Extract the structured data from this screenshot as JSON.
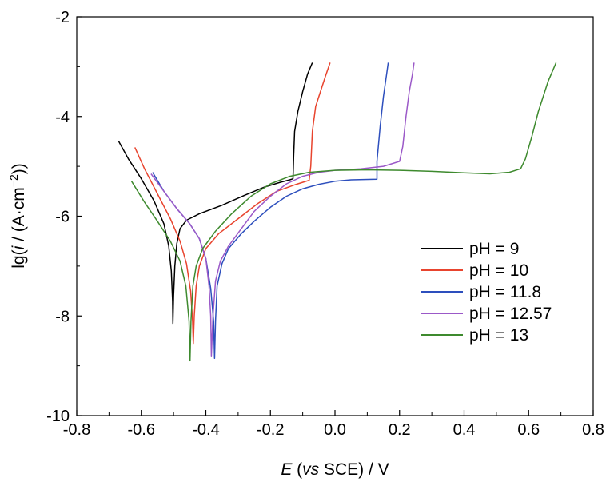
{
  "chart_data": {
    "type": "line",
    "title": "",
    "xlabel": {
      "italic": "E",
      "pre": " (",
      "italic2": "vs",
      "post": " SCE) / V"
    },
    "ylabel": {
      "pre": "lg(",
      "italic": "i",
      "mid": " / (A·cm",
      "sup": "−2",
      "post": "))"
    },
    "xlim": [
      -0.8,
      0.8
    ],
    "ylim": [
      -10,
      -2
    ],
    "xticks": [
      "-0.8",
      "-0.6",
      "-0.4",
      "-0.2",
      "0.0",
      "0.2",
      "0.4",
      "0.6",
      "0.8"
    ],
    "yticks": [
      "-2",
      "-4",
      "-6",
      "-8",
      "-10"
    ],
    "grid": false,
    "legend_position": "right-middle",
    "series": [
      {
        "name": "pH = 9",
        "color": "#000000",
        "points": [
          [
            -0.67,
            -4.5
          ],
          [
            -0.64,
            -4.85
          ],
          [
            -0.6,
            -5.25
          ],
          [
            -0.56,
            -5.7
          ],
          [
            -0.53,
            -6.15
          ],
          [
            -0.515,
            -6.6
          ],
          [
            -0.507,
            -7.1
          ],
          [
            -0.503,
            -7.7
          ],
          [
            -0.502,
            -8.15
          ],
          [
            -0.5,
            -7.6
          ],
          [
            -0.496,
            -7.0
          ],
          [
            -0.49,
            -6.55
          ],
          [
            -0.48,
            -6.25
          ],
          [
            -0.46,
            -6.08
          ],
          [
            -0.42,
            -5.95
          ],
          [
            -0.35,
            -5.78
          ],
          [
            -0.28,
            -5.58
          ],
          [
            -0.22,
            -5.42
          ],
          [
            -0.17,
            -5.32
          ],
          [
            -0.14,
            -5.27
          ],
          [
            -0.13,
            -5.25
          ],
          [
            -0.128,
            -4.8
          ],
          [
            -0.125,
            -4.3
          ],
          [
            -0.115,
            -3.9
          ],
          [
            -0.1,
            -3.5
          ],
          [
            -0.085,
            -3.15
          ],
          [
            -0.07,
            -2.92
          ]
        ]
      },
      {
        "name": "pH = 10",
        "color": "#e8442e",
        "points": [
          [
            -0.62,
            -4.62
          ],
          [
            -0.59,
            -5.05
          ],
          [
            -0.55,
            -5.55
          ],
          [
            -0.51,
            -6.05
          ],
          [
            -0.48,
            -6.5
          ],
          [
            -0.46,
            -6.95
          ],
          [
            -0.447,
            -7.5
          ],
          [
            -0.441,
            -8.1
          ],
          [
            -0.439,
            -8.55
          ],
          [
            -0.436,
            -8.0
          ],
          [
            -0.43,
            -7.4
          ],
          [
            -0.42,
            -7.0
          ],
          [
            -0.4,
            -6.65
          ],
          [
            -0.36,
            -6.35
          ],
          [
            -0.3,
            -6.05
          ],
          [
            -0.24,
            -5.75
          ],
          [
            -0.18,
            -5.5
          ],
          [
            -0.12,
            -5.36
          ],
          [
            -0.08,
            -5.28
          ],
          [
            -0.075,
            -5.0
          ],
          [
            -0.07,
            -4.3
          ],
          [
            -0.06,
            -3.8
          ],
          [
            -0.045,
            -3.5
          ],
          [
            -0.03,
            -3.2
          ],
          [
            -0.015,
            -2.92
          ]
        ]
      },
      {
        "name": "pH = 11.8",
        "color": "#2d4fbd",
        "points": [
          [
            -0.565,
            -5.12
          ],
          [
            -0.53,
            -5.5
          ],
          [
            -0.49,
            -5.85
          ],
          [
            -0.45,
            -6.15
          ],
          [
            -0.42,
            -6.45
          ],
          [
            -0.4,
            -6.85
          ],
          [
            -0.385,
            -7.45
          ],
          [
            -0.376,
            -8.1
          ],
          [
            -0.373,
            -8.85
          ],
          [
            -0.37,
            -8.1
          ],
          [
            -0.365,
            -7.4
          ],
          [
            -0.35,
            -6.95
          ],
          [
            -0.33,
            -6.65
          ],
          [
            -0.29,
            -6.35
          ],
          [
            -0.25,
            -6.1
          ],
          [
            -0.2,
            -5.82
          ],
          [
            -0.15,
            -5.6
          ],
          [
            -0.1,
            -5.45
          ],
          [
            -0.05,
            -5.36
          ],
          [
            0.0,
            -5.3
          ],
          [
            0.05,
            -5.27
          ],
          [
            0.13,
            -5.26
          ],
          [
            0.13,
            -4.9
          ],
          [
            0.14,
            -4.2
          ],
          [
            0.15,
            -3.6
          ],
          [
            0.16,
            -3.15
          ],
          [
            0.165,
            -2.92
          ]
        ]
      },
      {
        "name": "pH = 12.57",
        "color": "#9b59c8",
        "points": [
          [
            -0.57,
            -5.15
          ],
          [
            -0.53,
            -5.5
          ],
          [
            -0.49,
            -5.85
          ],
          [
            -0.45,
            -6.15
          ],
          [
            -0.42,
            -6.45
          ],
          [
            -0.4,
            -6.85
          ],
          [
            -0.39,
            -7.4
          ],
          [
            -0.385,
            -8.0
          ],
          [
            -0.383,
            -8.8
          ],
          [
            -0.378,
            -8.0
          ],
          [
            -0.37,
            -7.3
          ],
          [
            -0.355,
            -6.9
          ],
          [
            -0.33,
            -6.6
          ],
          [
            -0.29,
            -6.25
          ],
          [
            -0.25,
            -5.9
          ],
          [
            -0.2,
            -5.6
          ],
          [
            -0.15,
            -5.35
          ],
          [
            -0.1,
            -5.2
          ],
          [
            -0.05,
            -5.12
          ],
          [
            0.0,
            -5.08
          ],
          [
            0.08,
            -5.05
          ],
          [
            0.15,
            -5.0
          ],
          [
            0.2,
            -4.9
          ],
          [
            0.21,
            -4.6
          ],
          [
            0.22,
            -4.0
          ],
          [
            0.23,
            -3.5
          ],
          [
            0.24,
            -3.15
          ],
          [
            0.245,
            -2.92
          ]
        ]
      },
      {
        "name": "pH = 13",
        "color": "#3e8a2e",
        "points": [
          [
            -0.63,
            -5.3
          ],
          [
            -0.59,
            -5.72
          ],
          [
            -0.55,
            -6.1
          ],
          [
            -0.51,
            -6.5
          ],
          [
            -0.48,
            -6.9
          ],
          [
            -0.462,
            -7.4
          ],
          [
            -0.452,
            -8.1
          ],
          [
            -0.449,
            -8.9
          ],
          [
            -0.446,
            -8.1
          ],
          [
            -0.44,
            -7.4
          ],
          [
            -0.43,
            -7.0
          ],
          [
            -0.41,
            -6.65
          ],
          [
            -0.37,
            -6.3
          ],
          [
            -0.32,
            -5.95
          ],
          [
            -0.26,
            -5.6
          ],
          [
            -0.2,
            -5.35
          ],
          [
            -0.14,
            -5.2
          ],
          [
            -0.08,
            -5.12
          ],
          [
            0.0,
            -5.08
          ],
          [
            0.1,
            -5.07
          ],
          [
            0.2,
            -5.08
          ],
          [
            0.3,
            -5.1
          ],
          [
            0.4,
            -5.13
          ],
          [
            0.48,
            -5.15
          ],
          [
            0.54,
            -5.12
          ],
          [
            0.575,
            -5.05
          ],
          [
            0.59,
            -4.85
          ],
          [
            0.61,
            -4.4
          ],
          [
            0.63,
            -3.9
          ],
          [
            0.66,
            -3.3
          ],
          [
            0.685,
            -2.92
          ]
        ]
      }
    ]
  }
}
